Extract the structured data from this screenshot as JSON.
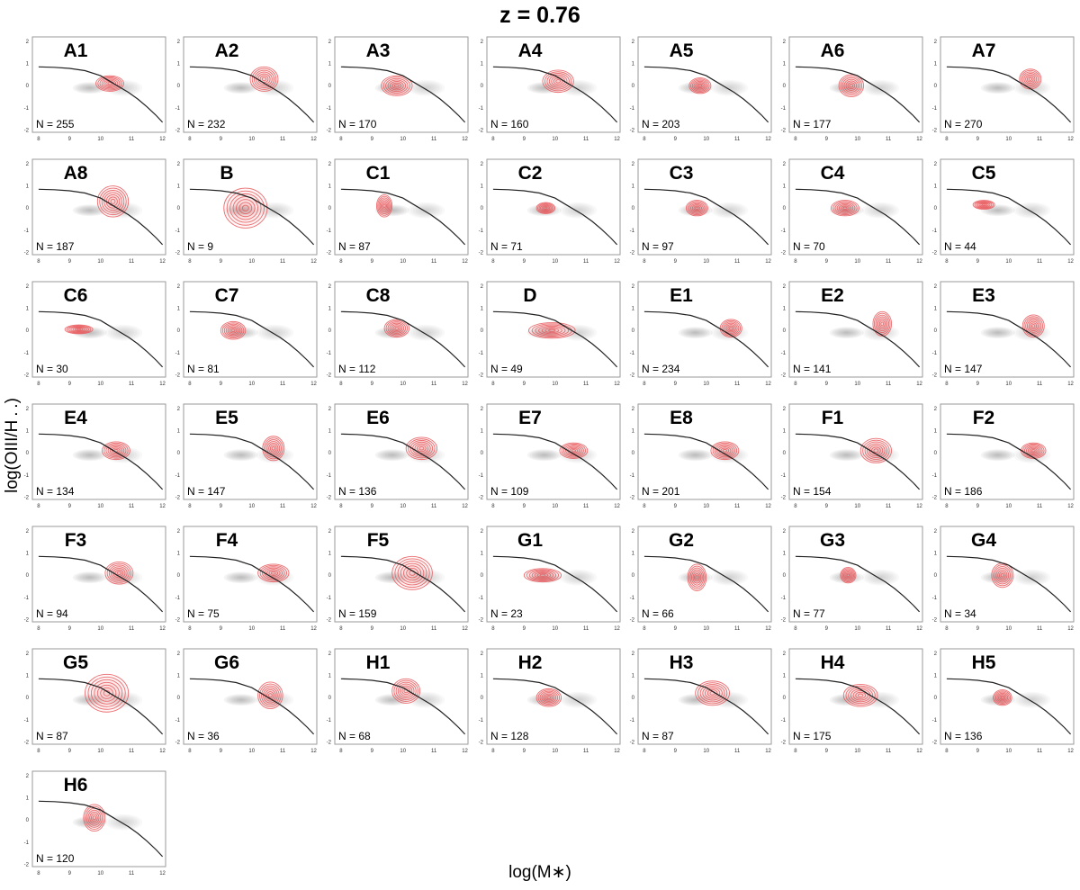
{
  "figure": {
    "title": "z = 0.76",
    "xlabel": "log(M∗)",
    "ylabel": "log(OIII/H . .)",
    "colors": {
      "reference_density": "#6e6e6e",
      "class_contours": "#e8575a",
      "demarcation_curve": "#222222",
      "panel_frame": "#9a9a9a"
    }
  },
  "chart_data": {
    "type": "scatter",
    "kind": "grid of density contour panels (mass-excitation diagram)",
    "x_range": [
      7.8,
      12.1
    ],
    "y_range": [
      -2.1,
      2.2
    ],
    "xticks": [
      8,
      9,
      10,
      11,
      12
    ],
    "yticks": [
      -2,
      -1,
      0,
      1,
      2
    ],
    "grid": false,
    "count_label_prefix": "N = ",
    "reference_density": {
      "center_x": 10.2,
      "center_y": -0.1
    },
    "demarcation_curve": {
      "x": [
        8.0,
        8.5,
        9.0,
        9.5,
        10.0,
        10.3,
        10.6,
        10.9,
        11.2,
        11.5,
        11.8,
        12.0
      ],
      "y": [
        0.85,
        0.83,
        0.78,
        0.68,
        0.45,
        0.2,
        -0.05,
        -0.3,
        -0.6,
        -0.95,
        -1.35,
        -1.65
      ]
    },
    "panels": [
      {
        "label": "A1",
        "n": 255,
        "cx": 10.3,
        "cy": 0.1,
        "sx": 0.45,
        "sy": 0.35
      },
      {
        "label": "A2",
        "n": 232,
        "cx": 10.4,
        "cy": 0.3,
        "sx": 0.45,
        "sy": 0.55
      },
      {
        "label": "A3",
        "n": 170,
        "cx": 9.8,
        "cy": 0.0,
        "sx": 0.5,
        "sy": 0.45
      },
      {
        "label": "A4",
        "n": 160,
        "cx": 10.1,
        "cy": 0.2,
        "sx": 0.5,
        "sy": 0.5
      },
      {
        "label": "A5",
        "n": 203,
        "cx": 9.8,
        "cy": 0.0,
        "sx": 0.35,
        "sy": 0.35
      },
      {
        "label": "A6",
        "n": 177,
        "cx": 9.8,
        "cy": 0.0,
        "sx": 0.4,
        "sy": 0.5
      },
      {
        "label": "A7",
        "n": 270,
        "cx": 10.7,
        "cy": 0.3,
        "sx": 0.35,
        "sy": 0.45
      },
      {
        "label": "A8",
        "n": 187,
        "cx": 10.4,
        "cy": 0.3,
        "sx": 0.5,
        "sy": 0.7
      },
      {
        "label": "B",
        "n": 9,
        "cx": 9.8,
        "cy": 0.0,
        "sx": 0.7,
        "sy": 0.9
      },
      {
        "label": "C1",
        "n": 87,
        "cx": 9.4,
        "cy": 0.1,
        "sx": 0.25,
        "sy": 0.5
      },
      {
        "label": "C2",
        "n": 71,
        "cx": 9.7,
        "cy": 0.0,
        "sx": 0.3,
        "sy": 0.25
      },
      {
        "label": "C3",
        "n": 97,
        "cx": 9.7,
        "cy": 0.0,
        "sx": 0.35,
        "sy": 0.35
      },
      {
        "label": "C4",
        "n": 70,
        "cx": 9.6,
        "cy": 0.0,
        "sx": 0.45,
        "sy": 0.35
      },
      {
        "label": "C5",
        "n": 44,
        "cx": 9.2,
        "cy": 0.15,
        "sx": 0.35,
        "sy": 0.2
      },
      {
        "label": "C6",
        "n": 30,
        "cx": 9.3,
        "cy": 0.05,
        "sx": 0.45,
        "sy": 0.2
      },
      {
        "label": "C7",
        "n": 81,
        "cx": 9.4,
        "cy": 0.0,
        "sx": 0.4,
        "sy": 0.4
      },
      {
        "label": "C8",
        "n": 112,
        "cx": 9.8,
        "cy": 0.1,
        "sx": 0.4,
        "sy": 0.4
      },
      {
        "label": "D",
        "n": 49,
        "cx": 9.9,
        "cy": 0.0,
        "sx": 0.75,
        "sy": 0.35
      },
      {
        "label": "E1",
        "n": 234,
        "cx": 10.8,
        "cy": 0.1,
        "sx": 0.35,
        "sy": 0.4
      },
      {
        "label": "E2",
        "n": 141,
        "cx": 10.8,
        "cy": 0.3,
        "sx": 0.3,
        "sy": 0.55
      },
      {
        "label": "E3",
        "n": 147,
        "cx": 10.8,
        "cy": 0.2,
        "sx": 0.35,
        "sy": 0.5
      },
      {
        "label": "E4",
        "n": 134,
        "cx": 10.5,
        "cy": 0.1,
        "sx": 0.45,
        "sy": 0.4
      },
      {
        "label": "E5",
        "n": 147,
        "cx": 10.7,
        "cy": 0.2,
        "sx": 0.35,
        "sy": 0.55
      },
      {
        "label": "E6",
        "n": 136,
        "cx": 10.6,
        "cy": 0.2,
        "sx": 0.5,
        "sy": 0.5
      },
      {
        "label": "E7",
        "n": 109,
        "cx": 10.6,
        "cy": 0.1,
        "sx": 0.45,
        "sy": 0.35
      },
      {
        "label": "E8",
        "n": 201,
        "cx": 10.6,
        "cy": 0.1,
        "sx": 0.45,
        "sy": 0.4
      },
      {
        "label": "F1",
        "n": 154,
        "cx": 10.6,
        "cy": 0.1,
        "sx": 0.5,
        "sy": 0.55
      },
      {
        "label": "F2",
        "n": 186,
        "cx": 10.8,
        "cy": 0.1,
        "sx": 0.4,
        "sy": 0.35
      },
      {
        "label": "F3",
        "n": 94,
        "cx": 10.6,
        "cy": 0.1,
        "sx": 0.45,
        "sy": 0.5
      },
      {
        "label": "F4",
        "n": 75,
        "cx": 10.7,
        "cy": 0.1,
        "sx": 0.5,
        "sy": 0.4
      },
      {
        "label": "F5",
        "n": 159,
        "cx": 10.3,
        "cy": 0.1,
        "sx": 0.65,
        "sy": 0.75
      },
      {
        "label": "G1",
        "n": 23,
        "cx": 9.6,
        "cy": 0.0,
        "sx": 0.6,
        "sy": 0.3
      },
      {
        "label": "G2",
        "n": 66,
        "cx": 9.7,
        "cy": -0.1,
        "sx": 0.3,
        "sy": 0.6
      },
      {
        "label": "G3",
        "n": 77,
        "cx": 9.7,
        "cy": 0.0,
        "sx": 0.25,
        "sy": 0.35
      },
      {
        "label": "G4",
        "n": 34,
        "cx": 9.8,
        "cy": 0.0,
        "sx": 0.35,
        "sy": 0.55
      },
      {
        "label": "G5",
        "n": 87,
        "cx": 10.2,
        "cy": 0.2,
        "sx": 0.7,
        "sy": 0.85
      },
      {
        "label": "G6",
        "n": 36,
        "cx": 10.6,
        "cy": 0.1,
        "sx": 0.4,
        "sy": 0.6
      },
      {
        "label": "H1",
        "n": 68,
        "cx": 10.1,
        "cy": 0.3,
        "sx": 0.45,
        "sy": 0.55
      },
      {
        "label": "H2",
        "n": 128,
        "cx": 9.8,
        "cy": 0.0,
        "sx": 0.4,
        "sy": 0.4
      },
      {
        "label": "H3",
        "n": 87,
        "cx": 10.2,
        "cy": 0.2,
        "sx": 0.55,
        "sy": 0.55
      },
      {
        "label": "H4",
        "n": 175,
        "cx": 10.1,
        "cy": 0.1,
        "sx": 0.55,
        "sy": 0.5
      },
      {
        "label": "H5",
        "n": 136,
        "cx": 9.8,
        "cy": 0.0,
        "sx": 0.3,
        "sy": 0.35
      },
      {
        "label": "H6",
        "n": 120,
        "cx": 9.8,
        "cy": 0.1,
        "sx": 0.35,
        "sy": 0.6
      }
    ]
  }
}
